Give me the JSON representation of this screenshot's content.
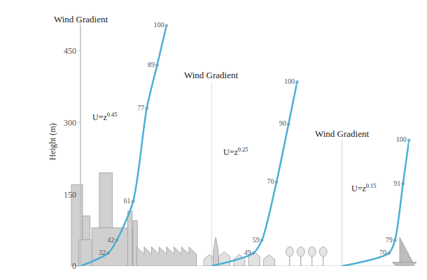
{
  "chart_data": {
    "type": "line",
    "y_label": "Height (m)",
    "ylim": [
      0,
      520
    ],
    "yticks": [
      0,
      150,
      300,
      450
    ],
    "xlim": [
      0,
      100
    ],
    "tick_labels": "y",
    "grid": false,
    "data_labels": true,
    "series": [
      {
        "title": "Wind Gradient",
        "annotation": {
          "text": "U=z",
          "superscript": "0.45"
        },
        "color": "#4aafd6",
        "heights": [
          0,
          27,
          54,
          135,
          330,
          420,
          503
        ],
        "values": [
          0,
          32,
          42,
          61,
          77,
          89,
          100
        ],
        "value_labels": [
          null,
          "32",
          "42",
          "61",
          "77",
          "89",
          "100"
        ]
      },
      {
        "title": "Wind Gradient",
        "annotation": {
          "text": "U=z",
          "superscript": "0.25"
        },
        "color": "#4aafd6",
        "heights": [
          0,
          27,
          54,
          176,
          297,
          385
        ],
        "values": [
          0,
          49,
          59,
          76,
          90,
          100
        ],
        "value_labels": [
          null,
          "49",
          "59",
          "76",
          "90",
          "100"
        ]
      },
      {
        "title": "Wind Gradient",
        "annotation": {
          "text": "U=z",
          "superscript": "0.15"
        },
        "color": "#4aafd6",
        "heights": [
          0,
          27,
          54,
          172,
          263
        ],
        "values": [
          0,
          70,
          79,
          91,
          100
        ],
        "value_labels": [
          null,
          "70",
          "79",
          "91",
          "100"
        ]
      }
    ]
  }
}
